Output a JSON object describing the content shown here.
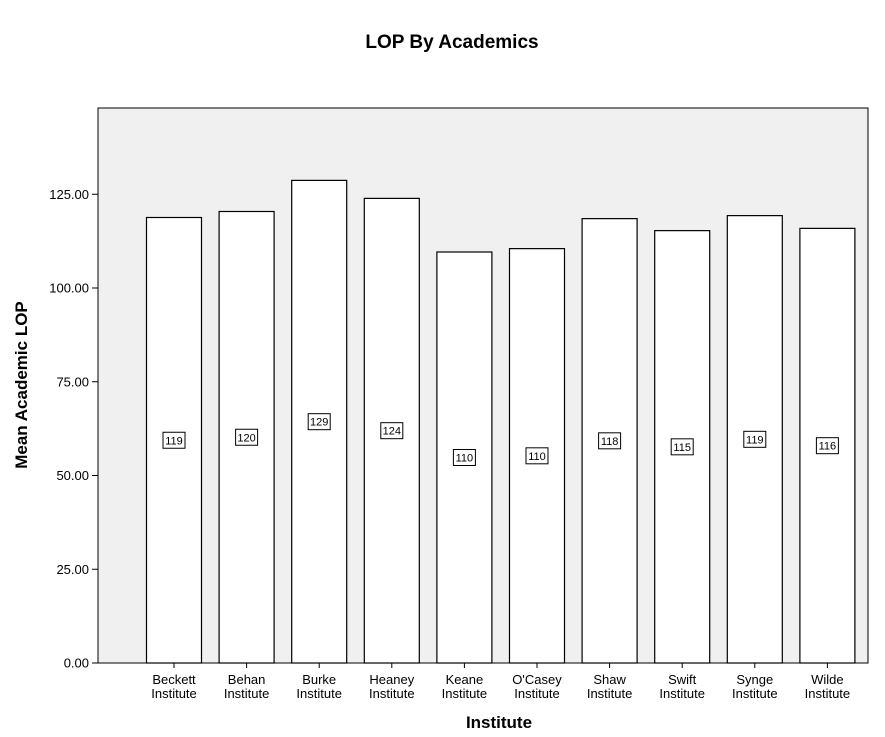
{
  "chart_data": {
    "type": "bar",
    "title": "LOP By Academics",
    "xlabel": "Institute",
    "ylabel": "Mean Academic LOP",
    "categories": [
      "Beckett Institute",
      "Behan Institute",
      "Burke Institute",
      "Heaney Institute",
      "Keane Institute",
      "O'Casey Institute",
      "Shaw Institute",
      "Swift Institute",
      "Synge Institute",
      "Wilde Institute"
    ],
    "values": [
      118.8,
      120.4,
      128.7,
      123.9,
      109.6,
      110.5,
      118.5,
      115.3,
      119.3,
      115.9
    ],
    "data_labels": [
      "119",
      "120",
      "129",
      "124",
      "110",
      "110",
      "118",
      "115",
      "119",
      "116"
    ],
    "yticks": [
      "0.00",
      "25.00",
      "50.00",
      "75.00",
      "100.00",
      "125.00"
    ],
    "ylim": [
      0,
      148
    ],
    "grid": false,
    "legend": "none",
    "colors": {
      "plot_background": "#f0f0f0",
      "bar_fill": "#ffffff",
      "bar_stroke": "#000000"
    }
  }
}
